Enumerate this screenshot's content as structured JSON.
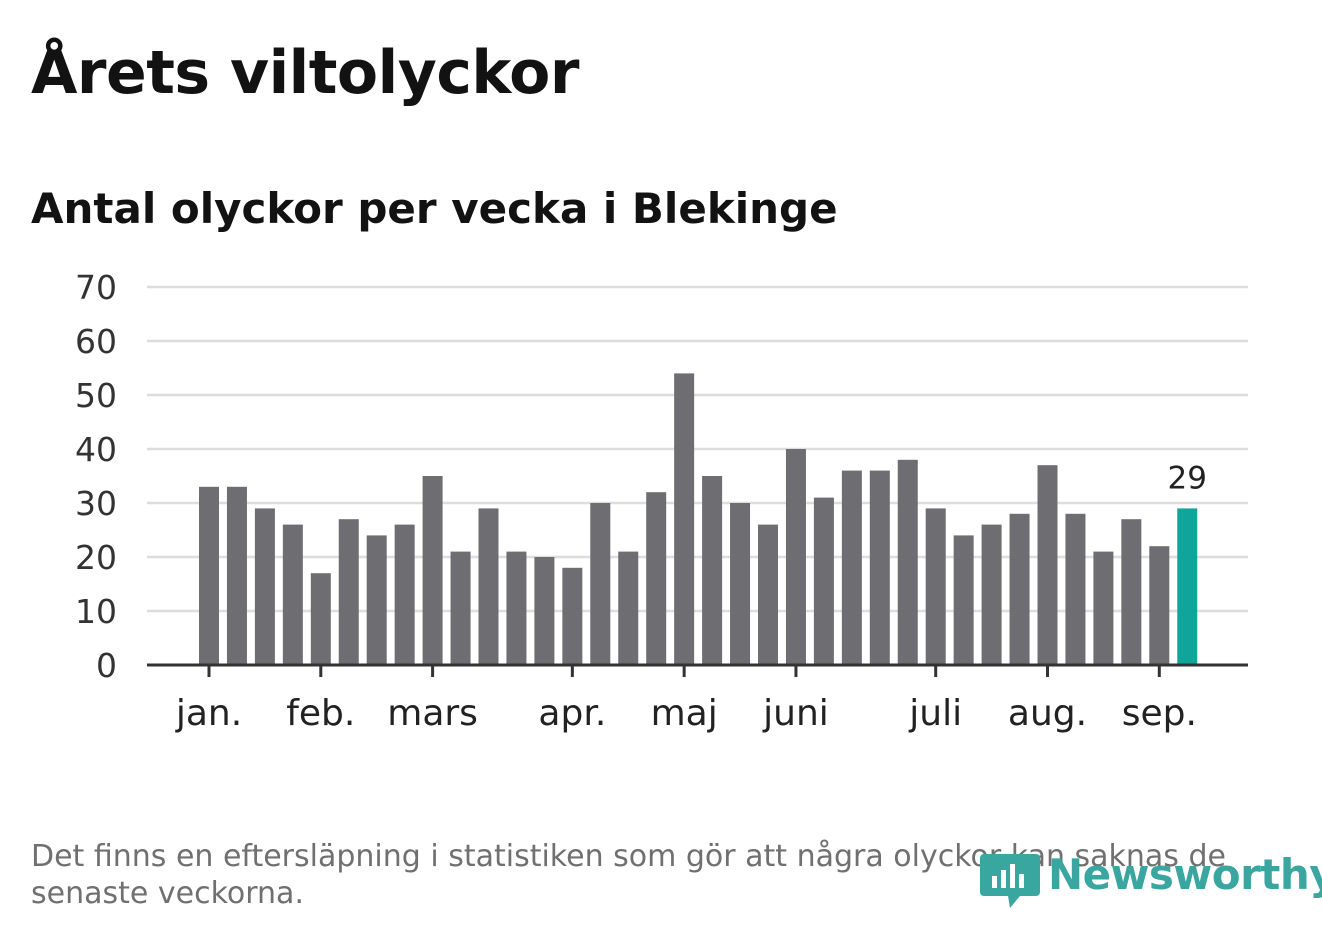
{
  "title": "Årets viltolyckor",
  "subtitle": "Antal olyckor per vecka i Blekinge",
  "note": "Det finns en eftersläpning i statistiken som gör att några olyckor kan saknas de senaste veckorna.",
  "brand": "Newsworthy",
  "colors": {
    "bar": "#6d6d72",
    "highlight": "#10a59b",
    "grid": "#dddddd",
    "axis": "#333333",
    "brand": "#3aa6a0"
  },
  "chart_data": {
    "type": "bar",
    "title": "Antal olyckor per vecka i Blekinge",
    "xlabel": "",
    "ylabel": "",
    "ylim": [
      0,
      70
    ],
    "yticks": [
      0,
      10,
      20,
      30,
      40,
      50,
      60,
      70
    ],
    "grid": true,
    "legend": "none",
    "months": [
      {
        "label": "jan.",
        "week": 1
      },
      {
        "label": "feb.",
        "week": 5
      },
      {
        "label": "mars",
        "week": 9
      },
      {
        "label": "apr.",
        "week": 14
      },
      {
        "label": "maj",
        "week": 18
      },
      {
        "label": "juni",
        "week": 22
      },
      {
        "label": "juli",
        "week": 27
      },
      {
        "label": "aug.",
        "week": 31
      },
      {
        "label": "sep.",
        "week": 35
      }
    ],
    "weeks": [
      1,
      2,
      3,
      4,
      5,
      6,
      7,
      8,
      9,
      10,
      11,
      12,
      13,
      14,
      15,
      16,
      17,
      18,
      19,
      20,
      21,
      22,
      23,
      24,
      25,
      26,
      27,
      28,
      29,
      30,
      31,
      32,
      33,
      34,
      35,
      36
    ],
    "values": [
      33,
      33,
      29,
      26,
      17,
      27,
      24,
      26,
      35,
      21,
      29,
      21,
      20,
      18,
      30,
      21,
      32,
      54,
      35,
      30,
      26,
      40,
      31,
      36,
      36,
      38,
      29,
      24,
      26,
      28,
      37,
      28,
      21,
      27,
      22,
      29
    ],
    "highlight_label": "29"
  }
}
